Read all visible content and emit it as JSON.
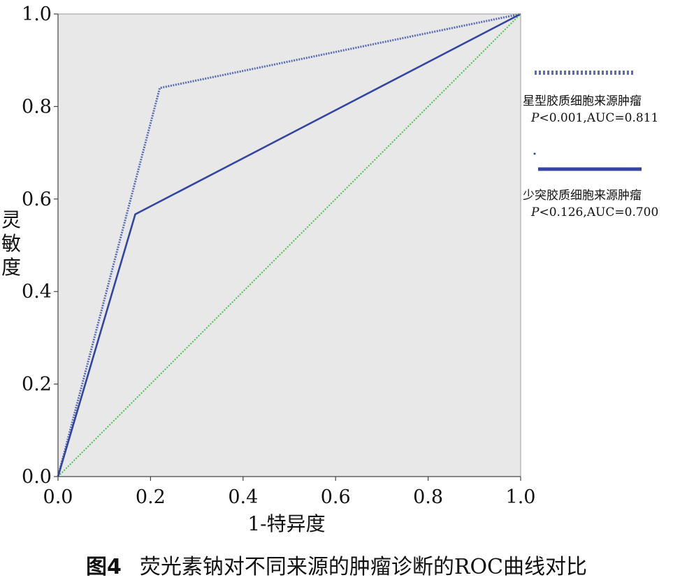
{
  "chart_data": {
    "type": "line",
    "xlabel": "1-特异度",
    "ylabel": "灵敏度",
    "xlim": [
      0,
      1
    ],
    "ylim": [
      0,
      1
    ],
    "xticks": [
      "0.0",
      "0.2",
      "0.4",
      "0.6",
      "0.8",
      "1.0"
    ],
    "yticks": [
      "0.0",
      "0.2",
      "0.4",
      "0.6",
      "0.8",
      "1.0"
    ],
    "grid": false,
    "legend_placement": "right",
    "series": [
      {
        "name": "星型胶质细胞来源肿瘤",
        "stat": "P<0.001,AUC=0.811",
        "style": "dotted",
        "color": "#5a6cb4",
        "points": [
          [
            0,
            0
          ],
          [
            0.22,
            0.84
          ],
          [
            1,
            1
          ]
        ]
      },
      {
        "name": "少突胶质细胞来源肿瘤",
        "stat": "P<0.126,AUC=0.700",
        "style": "solid",
        "color": "#3345a0",
        "points": [
          [
            0,
            0
          ],
          [
            0.167,
            0.567
          ],
          [
            1,
            1
          ]
        ]
      },
      {
        "name": "",
        "style": "reference",
        "color": "#4cc24c",
        "points": [
          [
            0,
            0
          ],
          [
            1,
            1
          ]
        ]
      }
    ]
  },
  "legend": {
    "item1_name": "星型胶质细胞来源肿瘤",
    "item1_stat": "P<0.001,AUC=0.811",
    "item2_name": "少突胶质细胞来源肿瘤",
    "item2_stat": "P<0.126,AUC=0.700"
  },
  "caption": {
    "label": "图4",
    "text": "荧光素钠对不同来源的肿瘤诊断的ROC曲线对比"
  },
  "colors": {
    "plot_background": "#e8e8e8",
    "axis": "#444444"
  }
}
